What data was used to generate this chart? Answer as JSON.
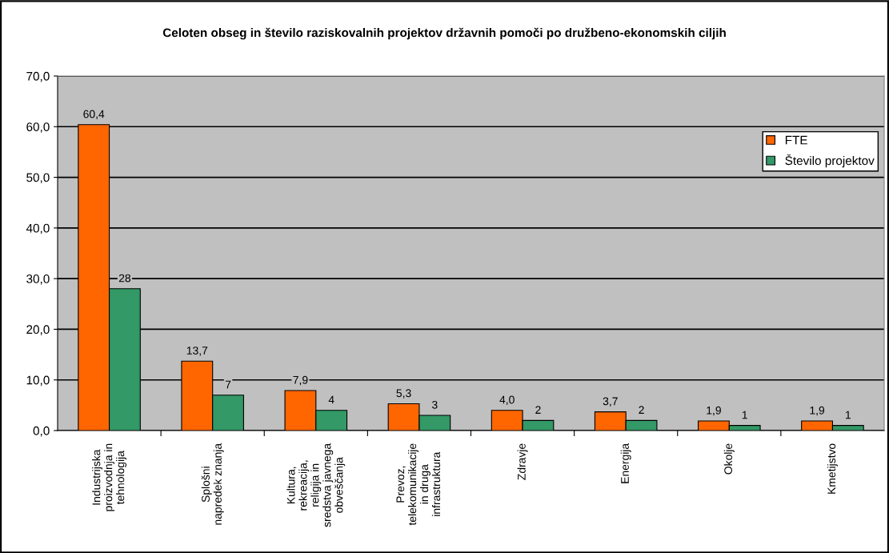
{
  "chart_data": {
    "type": "bar",
    "title": "Celoten obseg in število raziskovalnih projektov državnih pomoči po družbeno-ekonomskih ciljih",
    "categories": [
      "Industrijska\nproizvodnja in\ntehnologija",
      "Splošni\nnapredek znanja",
      "Kultura,\nrekreacija,\nreligija in\nsredstva javnega\nobveščanja",
      "Prevoz,\ntelekomunikacije\nin druga\ninfrastruktura",
      "Zdravje",
      "Energija",
      "Okolje",
      "Kmetijstvo"
    ],
    "series": [
      {
        "name": "FTE",
        "color": "#ff6600",
        "values": [
          60.4,
          13.7,
          7.9,
          5.3,
          4.0,
          3.7,
          1.9,
          1.9
        ],
        "value_labels": [
          "60,4",
          "13,7",
          "7,9",
          "5,3",
          "4,0",
          "3,7",
          "1,9",
          "1,9"
        ]
      },
      {
        "name": "Število projektov",
        "color": "#339966",
        "values": [
          28,
          7,
          4,
          3,
          2,
          2,
          1,
          1
        ],
        "value_labels": [
          "28",
          "7",
          "4",
          "3",
          "2",
          "2",
          "1",
          "1"
        ]
      }
    ],
    "ylim": [
      0,
      70
    ],
    "yticks": [
      {
        "value": 0,
        "label": "0,0"
      },
      {
        "value": 10,
        "label": "10,0"
      },
      {
        "value": 20,
        "label": "20,0"
      },
      {
        "value": 30,
        "label": "30,0"
      },
      {
        "value": 40,
        "label": "40,0"
      },
      {
        "value": 50,
        "label": "50,0"
      },
      {
        "value": 60,
        "label": "60,0"
      },
      {
        "value": 70,
        "label": "70,0"
      }
    ],
    "grid": "y",
    "legend": "top right"
  }
}
